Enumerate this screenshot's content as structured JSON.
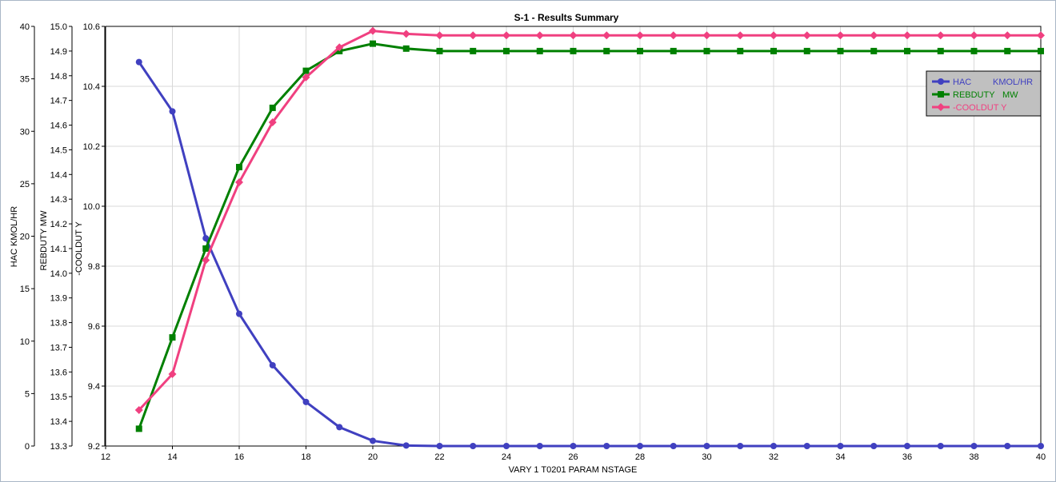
{
  "chart_data": {
    "type": "line",
    "title": "S-1 - Results Summary",
    "xlabel": "VARY   1 T0201    PARAM    NSTAGE",
    "x": [
      13,
      14,
      15,
      16,
      17,
      18,
      19,
      20,
      21,
      22,
      23,
      24,
      25,
      26,
      27,
      28,
      29,
      30,
      31,
      32,
      33,
      34,
      35,
      36,
      37,
      38,
      39,
      40
    ],
    "xlim": [
      12,
      40
    ],
    "x_ticks": [
      "12",
      "14",
      "16",
      "18",
      "20",
      "22",
      "24",
      "26",
      "28",
      "30",
      "32",
      "34",
      "36",
      "38",
      "40"
    ],
    "grid": true,
    "legend_position": "top-right",
    "axes": [
      {
        "id": "hac",
        "label": "HAC          KMOL/HR",
        "ylim": [
          0,
          40
        ],
        "ticks": [
          "0",
          "5",
          "10",
          "15",
          "20",
          "25",
          "30",
          "35",
          "40"
        ]
      },
      {
        "id": "reb",
        "label": "REBDUTY       MW",
        "ylim": [
          13.3,
          15.0
        ],
        "ticks": [
          "13.3",
          "13.4",
          "13.5",
          "13.6",
          "13.7",
          "13.8",
          "13.9",
          "14.0",
          "14.1",
          "14.2",
          "14.3",
          "14.4",
          "14.5",
          "14.6",
          "14.7",
          "14.8",
          "14.9",
          "15.0"
        ]
      },
      {
        "id": "cool",
        "label": "-COOLDUT Y",
        "ylim": [
          9.2,
          10.6
        ],
        "ticks": [
          "9.2",
          "9.4",
          "9.6",
          "9.8",
          "10.0",
          "10.2",
          "10.4",
          "10.6"
        ]
      }
    ],
    "series": [
      {
        "name": "HAC",
        "unit": "KMOL/HR",
        "axis": "hac",
        "color": "#4040c0",
        "marker": "circle",
        "values": [
          36.6,
          31.9,
          19.8,
          12.6,
          7.7,
          4.2,
          1.8,
          0.5,
          0.05,
          0,
          0,
          0,
          0,
          0,
          0,
          0,
          0,
          0,
          0,
          0,
          0,
          0,
          0,
          0,
          0,
          0,
          0,
          0
        ]
      },
      {
        "name": "REBDUTY",
        "unit": "MW",
        "axis": "reb",
        "color": "#008000",
        "marker": "square",
        "values": [
          13.37,
          13.74,
          14.1,
          14.43,
          14.67,
          14.82,
          14.9,
          14.93,
          14.91,
          14.9,
          14.9,
          14.9,
          14.9,
          14.9,
          14.9,
          14.9,
          14.9,
          14.9,
          14.9,
          14.9,
          14.9,
          14.9,
          14.9,
          14.9,
          14.9,
          14.9,
          14.9,
          14.9
        ]
      },
      {
        "name": "-COOLDUT Y",
        "unit": "",
        "axis": "cool",
        "color": "#f04080",
        "marker": "diamond",
        "values": [
          9.32,
          9.44,
          9.82,
          10.08,
          10.28,
          10.43,
          10.53,
          10.585,
          10.575,
          10.57,
          10.57,
          10.57,
          10.57,
          10.57,
          10.57,
          10.57,
          10.57,
          10.57,
          10.57,
          10.57,
          10.57,
          10.57,
          10.57,
          10.57,
          10.57,
          10.57,
          10.57,
          10.57
        ]
      }
    ]
  }
}
